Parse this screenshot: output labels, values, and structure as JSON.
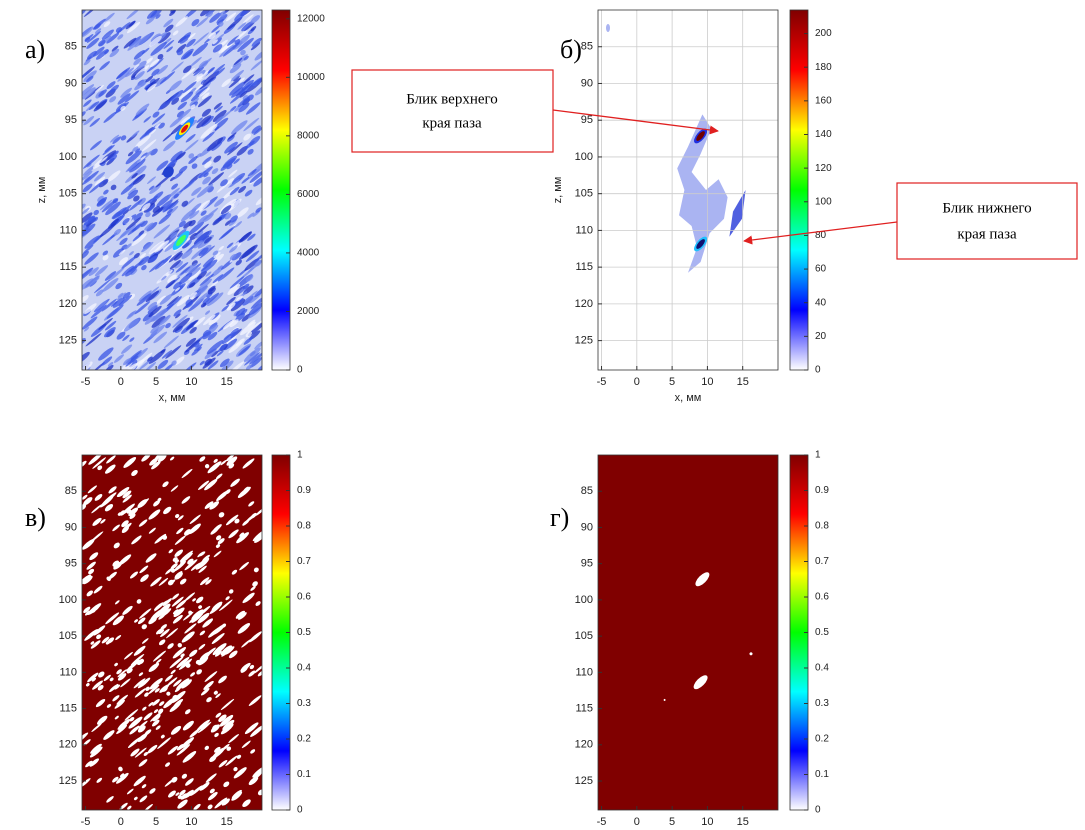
{
  "chart_data": [
    {
      "type": "heatmap",
      "panel_label": "а)",
      "xlabel": "x, мм",
      "ylabel": "z, мм",
      "xlim": [
        -5.5,
        20
      ],
      "ylim": [
        80,
        129
      ],
      "xticks": [
        -5,
        0,
        5,
        10,
        15
      ],
      "yticks": [
        85,
        90,
        95,
        100,
        105,
        110,
        115,
        120,
        125
      ],
      "clim": [
        0,
        12300
      ],
      "cticks": [
        0,
        2000,
        4000,
        6000,
        8000,
        10000,
        12000
      ],
      "colormap": [
        "#ffffff",
        "#0000ff",
        "#00ffff",
        "#00ff00",
        "#ffff00",
        "#ff0000",
        "#800000"
      ],
      "grid": false
    },
    {
      "type": "heatmap",
      "panel_label": "б)",
      "xlabel": "x, мм",
      "ylabel": "z, мм",
      "xlim": [
        -5.5,
        20
      ],
      "ylim": [
        80,
        129
      ],
      "xticks": [
        -5,
        0,
        5,
        10,
        15
      ],
      "yticks": [
        85,
        90,
        95,
        100,
        105,
        110,
        115,
        120,
        125
      ],
      "clim": [
        0,
        214
      ],
      "cticks": [
        0,
        20,
        40,
        60,
        80,
        100,
        120,
        140,
        160,
        180,
        200
      ],
      "colormap": [
        "#ffffff",
        "#0000ff",
        "#00ffff",
        "#00ff00",
        "#ffff00",
        "#ff0000",
        "#800000"
      ],
      "grid": true,
      "annotations": [
        {
          "lines": [
            "Блик верхнего",
            "края паза"
          ]
        },
        {
          "lines": [
            "Блик нижнего",
            "края паза"
          ]
        }
      ]
    },
    {
      "type": "heatmap",
      "panel_label": "в)",
      "xlim": [
        -5.5,
        20
      ],
      "ylim": [
        80,
        129
      ],
      "xticks": [
        -5,
        0,
        5,
        10,
        15
      ],
      "yticks": [
        85,
        90,
        95,
        100,
        105,
        110,
        115,
        120,
        125
      ],
      "clim": [
        0,
        1
      ],
      "cticks": [
        0,
        0.1,
        0.2,
        0.3,
        0.4,
        0.5,
        0.6,
        0.7,
        0.8,
        0.9,
        1
      ],
      "colormap": [
        "#ffffff",
        "#0000ff",
        "#00ffff",
        "#00ff00",
        "#ffff00",
        "#ff0000",
        "#800000"
      ],
      "grid": false
    },
    {
      "type": "heatmap",
      "panel_label": "г)",
      "xlim": [
        -5.5,
        20
      ],
      "ylim": [
        80,
        129
      ],
      "xticks": [
        -5,
        0,
        5,
        10,
        15
      ],
      "yticks": [
        85,
        90,
        95,
        100,
        105,
        110,
        115,
        120,
        125
      ],
      "clim": [
        0,
        1
      ],
      "cticks": [
        0,
        0.1,
        0.2,
        0.3,
        0.4,
        0.5,
        0.6,
        0.7,
        0.8,
        0.9,
        1
      ],
      "colormap": [
        "#ffffff",
        "#0000ff",
        "#00ffff",
        "#00ff00",
        "#ffff00",
        "#ff0000",
        "#800000"
      ],
      "grid": false
    }
  ]
}
